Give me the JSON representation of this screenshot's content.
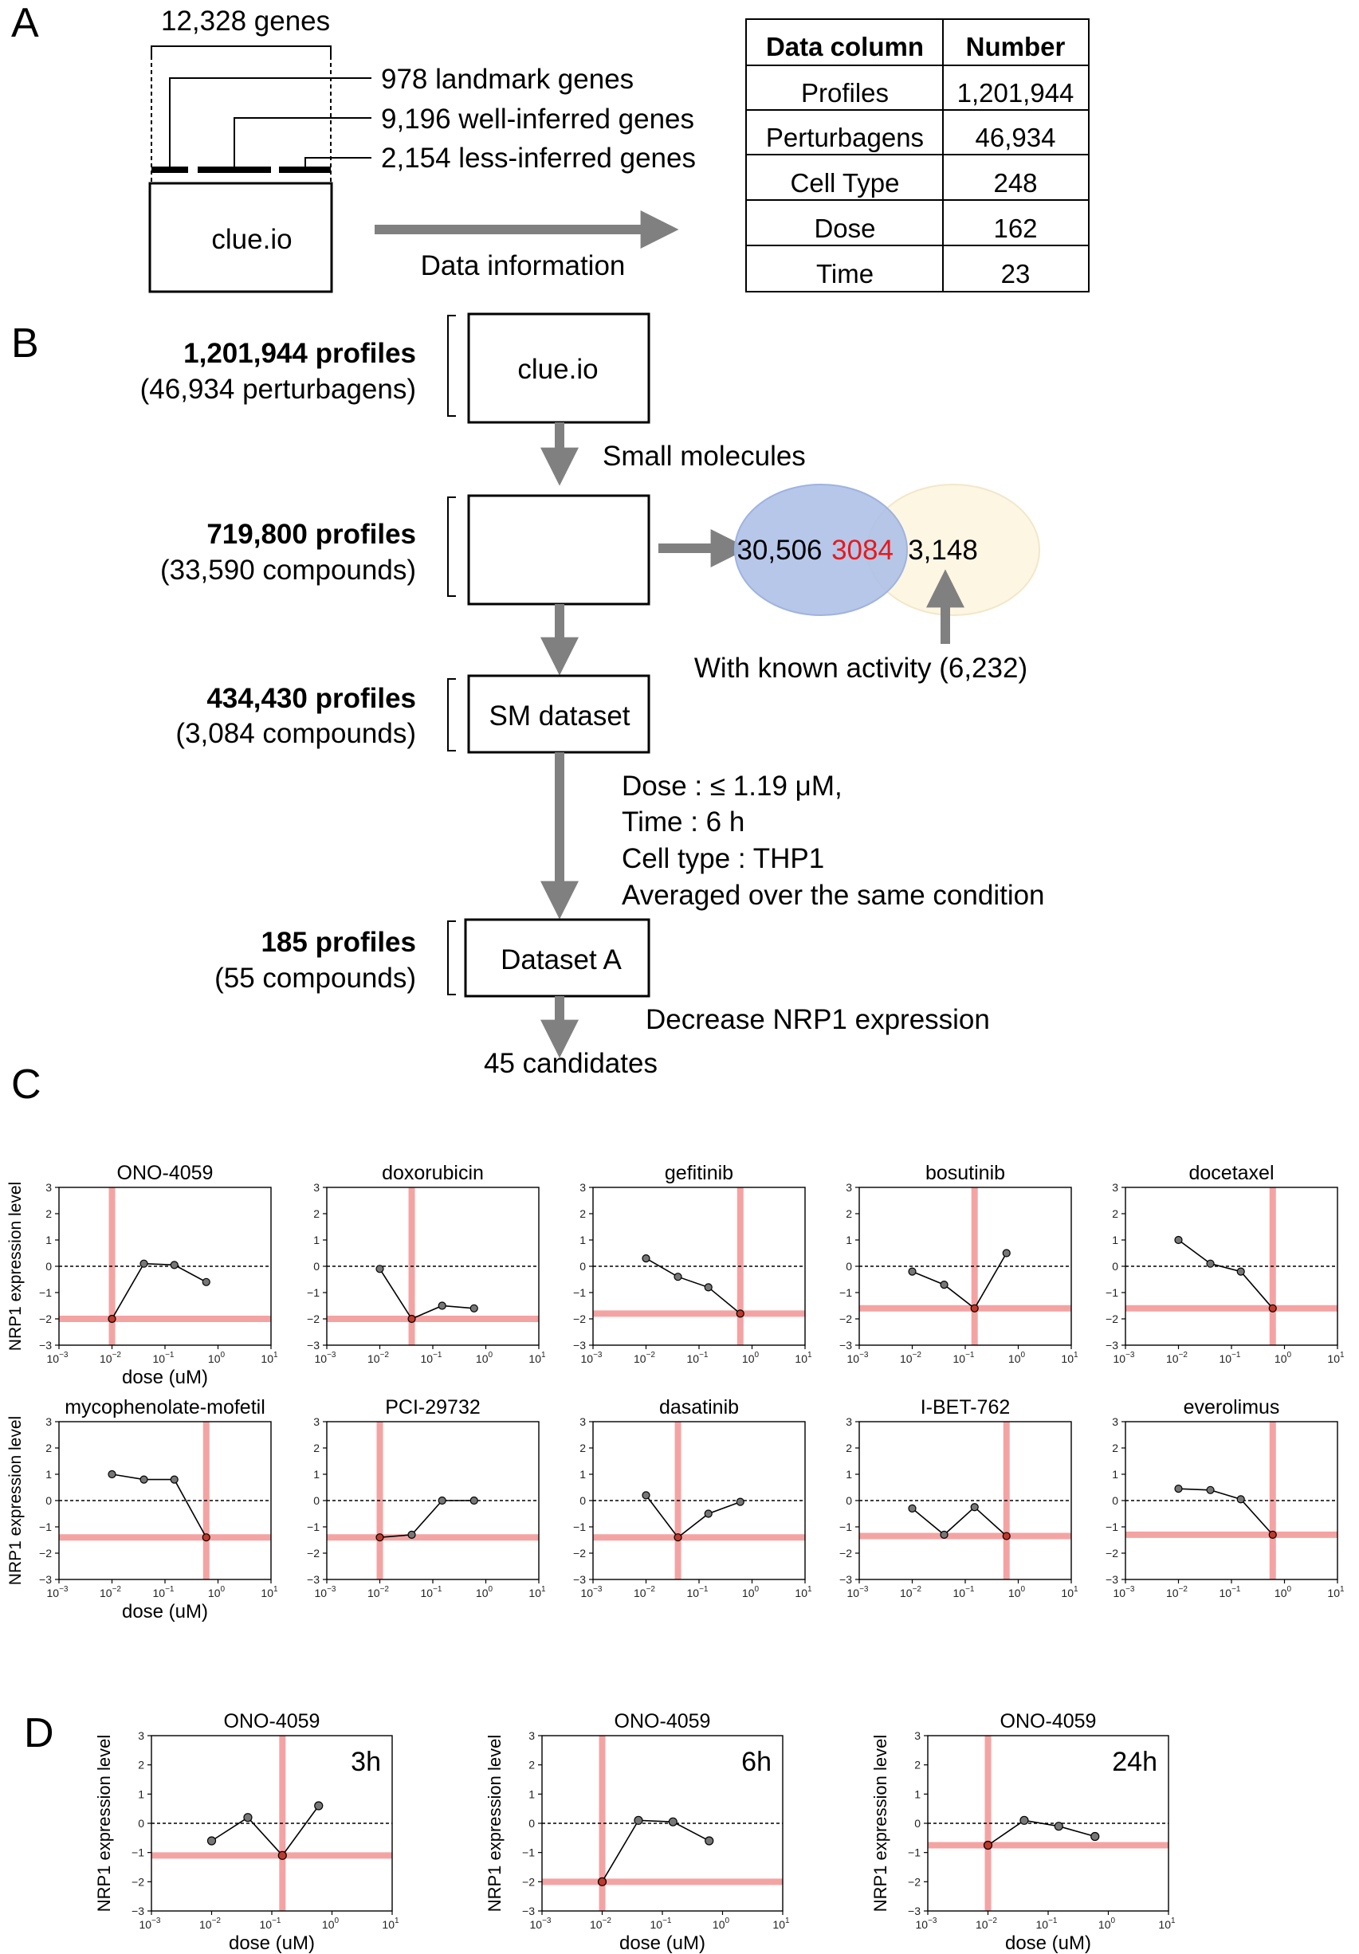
{
  "panelA": {
    "letter": "A",
    "total_genes": "12,328 genes",
    "landmark": "978 landmark genes",
    "well_inferred": "9,196 well-inferred genes",
    "less_inferred": "2,154 less-inferred genes",
    "box_label": "clue.io",
    "arrow_label": "Data information",
    "table": {
      "headers": [
        "Data column",
        "Number"
      ],
      "rows": [
        [
          "Profiles",
          "1,201,944"
        ],
        [
          "Perturbagens",
          "46,934"
        ],
        [
          "Cell Type",
          "248"
        ],
        [
          "Dose",
          "162"
        ],
        [
          "Time",
          "23"
        ]
      ]
    }
  },
  "panelB": {
    "letter": "B",
    "stage1": {
      "profiles": "1,201,944 profiles",
      "sub": "(46,934 perturbagens)",
      "box": "clue.io"
    },
    "step1": "Small molecules",
    "stage2": {
      "profiles": "719,800 profiles",
      "sub": "(33,590 compounds)"
    },
    "venn": {
      "left": "30,506",
      "overlap": "3084",
      "right": "3,148",
      "caption": "With known activity (6,232)"
    },
    "stage3": {
      "profiles": "434,430 profiles",
      "sub": "(3,084 compounds)",
      "box": "SM dataset"
    },
    "conditions": [
      "Dose :  ≤ 1.19 μM,",
      "Time : 6 h",
      "Cell type : THP1",
      "Averaged over the same condition"
    ],
    "stage4": {
      "profiles": "185 profiles",
      "sub": "(55 compounds)",
      "box": "Dataset A"
    },
    "step4": "Decrease NRP1 expression",
    "result": "45 candidates"
  },
  "panelC": {
    "letter": "C",
    "ylabel": "NRP1 expression level",
    "xlabel": "dose (uM)",
    "yticks": [
      "3",
      "2",
      "1",
      "0",
      "−1",
      "−2",
      "−3"
    ],
    "xticks": [
      [
        "10",
        "−3"
      ],
      [
        "10",
        "−2"
      ],
      [
        "10",
        "−1"
      ],
      [
        "10",
        "0"
      ],
      [
        "10",
        "1"
      ]
    ]
  },
  "panelD": {
    "letter": "D",
    "ylabel": "NRP1 expression level",
    "xlabel": "dose (uM)"
  },
  "colors": {
    "marker_line": "#f4a3a3",
    "venn_left": "#a9bde6",
    "venn_right": "#fdf6e3",
    "arrow": "#808080",
    "overlap_text": "#e8191b"
  },
  "chart_data": [
    {
      "type": "line",
      "title": "ONO-4059",
      "x": [
        0.01,
        0.04,
        0.15,
        0.6
      ],
      "y": [
        -2.0,
        0.1,
        0.05,
        -0.6
      ],
      "vline_x": 0.01,
      "hline_y": -2.0,
      "xscale": "log",
      "xlim": [
        0.001,
        10
      ],
      "ylim": [
        -3,
        3
      ]
    },
    {
      "type": "line",
      "title": "doxorubicin",
      "x": [
        0.01,
        0.04,
        0.15,
        0.6
      ],
      "y": [
        -0.1,
        -2.0,
        -1.5,
        -1.6
      ],
      "vline_x": 0.04,
      "hline_y": -2.0,
      "xscale": "log",
      "xlim": [
        0.001,
        10
      ],
      "ylim": [
        -3,
        3
      ]
    },
    {
      "type": "line",
      "title": "gefitinib",
      "x": [
        0.01,
        0.04,
        0.15,
        0.6
      ],
      "y": [
        0.3,
        -0.4,
        -0.8,
        -1.8
      ],
      "vline_x": 0.6,
      "hline_y": -1.8,
      "xscale": "log",
      "xlim": [
        0.001,
        10
      ],
      "ylim": [
        -3,
        3
      ]
    },
    {
      "type": "line",
      "title": "bosutinib",
      "x": [
        0.01,
        0.04,
        0.15,
        0.6
      ],
      "y": [
        -0.2,
        -0.7,
        -1.6,
        0.5
      ],
      "vline_x": 0.15,
      "hline_y": -1.6,
      "xscale": "log",
      "xlim": [
        0.001,
        10
      ],
      "ylim": [
        -3,
        3
      ]
    },
    {
      "type": "line",
      "title": "docetaxel",
      "x": [
        0.01,
        0.04,
        0.15,
        0.6
      ],
      "y": [
        1.0,
        0.1,
        -0.2,
        -1.6
      ],
      "vline_x": 0.6,
      "hline_y": -1.6,
      "xscale": "log",
      "xlim": [
        0.001,
        10
      ],
      "ylim": [
        -3,
        3
      ]
    },
    {
      "type": "line",
      "title": "mycophenolate-mofetil",
      "x": [
        0.01,
        0.04,
        0.15,
        0.6
      ],
      "y": [
        1.0,
        0.8,
        0.8,
        -1.4
      ],
      "vline_x": 0.6,
      "hline_y": -1.4,
      "xscale": "log",
      "xlim": [
        0.001,
        10
      ],
      "ylim": [
        -3,
        3
      ]
    },
    {
      "type": "line",
      "title": "PCI-29732",
      "x": [
        0.01,
        0.04,
        0.15,
        0.6
      ],
      "y": [
        -1.4,
        -1.3,
        0.0,
        0.0
      ],
      "vline_x": 0.01,
      "hline_y": -1.4,
      "xscale": "log",
      "xlim": [
        0.001,
        10
      ],
      "ylim": [
        -3,
        3
      ]
    },
    {
      "type": "line",
      "title": "dasatinib",
      "x": [
        0.01,
        0.04,
        0.15,
        0.6
      ],
      "y": [
        0.2,
        -1.4,
        -0.5,
        -0.05
      ],
      "vline_x": 0.04,
      "hline_y": -1.4,
      "xscale": "log",
      "xlim": [
        0.001,
        10
      ],
      "ylim": [
        -3,
        3
      ]
    },
    {
      "type": "line",
      "title": "I-BET-762",
      "x": [
        0.01,
        0.04,
        0.15,
        0.6
      ],
      "y": [
        -0.3,
        -1.3,
        -0.25,
        -1.35
      ],
      "vline_x": 0.6,
      "hline_y": -1.35,
      "xscale": "log",
      "xlim": [
        0.001,
        10
      ],
      "ylim": [
        -3,
        3
      ]
    },
    {
      "type": "line",
      "title": "everolimus",
      "x": [
        0.01,
        0.04,
        0.15,
        0.6
      ],
      "y": [
        0.45,
        0.4,
        0.05,
        -1.3
      ],
      "vline_x": 0.6,
      "hline_y": -1.3,
      "xscale": "log",
      "xlim": [
        0.001,
        10
      ],
      "ylim": [
        -3,
        3
      ]
    },
    {
      "type": "line",
      "title": "ONO-4059",
      "time": "3h",
      "x": [
        0.01,
        0.04,
        0.15,
        0.6
      ],
      "y": [
        -0.6,
        0.2,
        -1.1,
        0.6
      ],
      "vline_x": 0.15,
      "hline_y": -1.1,
      "xscale": "log",
      "xlim": [
        0.001,
        10
      ],
      "ylim": [
        -3,
        3
      ]
    },
    {
      "type": "line",
      "title": "ONO-4059",
      "time": "6h",
      "x": [
        0.01,
        0.04,
        0.15,
        0.6
      ],
      "y": [
        -2.0,
        0.1,
        0.05,
        -0.6
      ],
      "vline_x": 0.01,
      "hline_y": -2.0,
      "xscale": "log",
      "xlim": [
        0.001,
        10
      ],
      "ylim": [
        -3,
        3
      ]
    },
    {
      "type": "line",
      "title": "ONO-4059",
      "time": "24h",
      "x": [
        0.01,
        0.04,
        0.15,
        0.6
      ],
      "y": [
        -0.75,
        0.1,
        -0.1,
        -0.45
      ],
      "vline_x": 0.01,
      "hline_y": -0.75,
      "xscale": "log",
      "xlim": [
        0.001,
        10
      ],
      "ylim": [
        -3,
        3
      ]
    }
  ]
}
